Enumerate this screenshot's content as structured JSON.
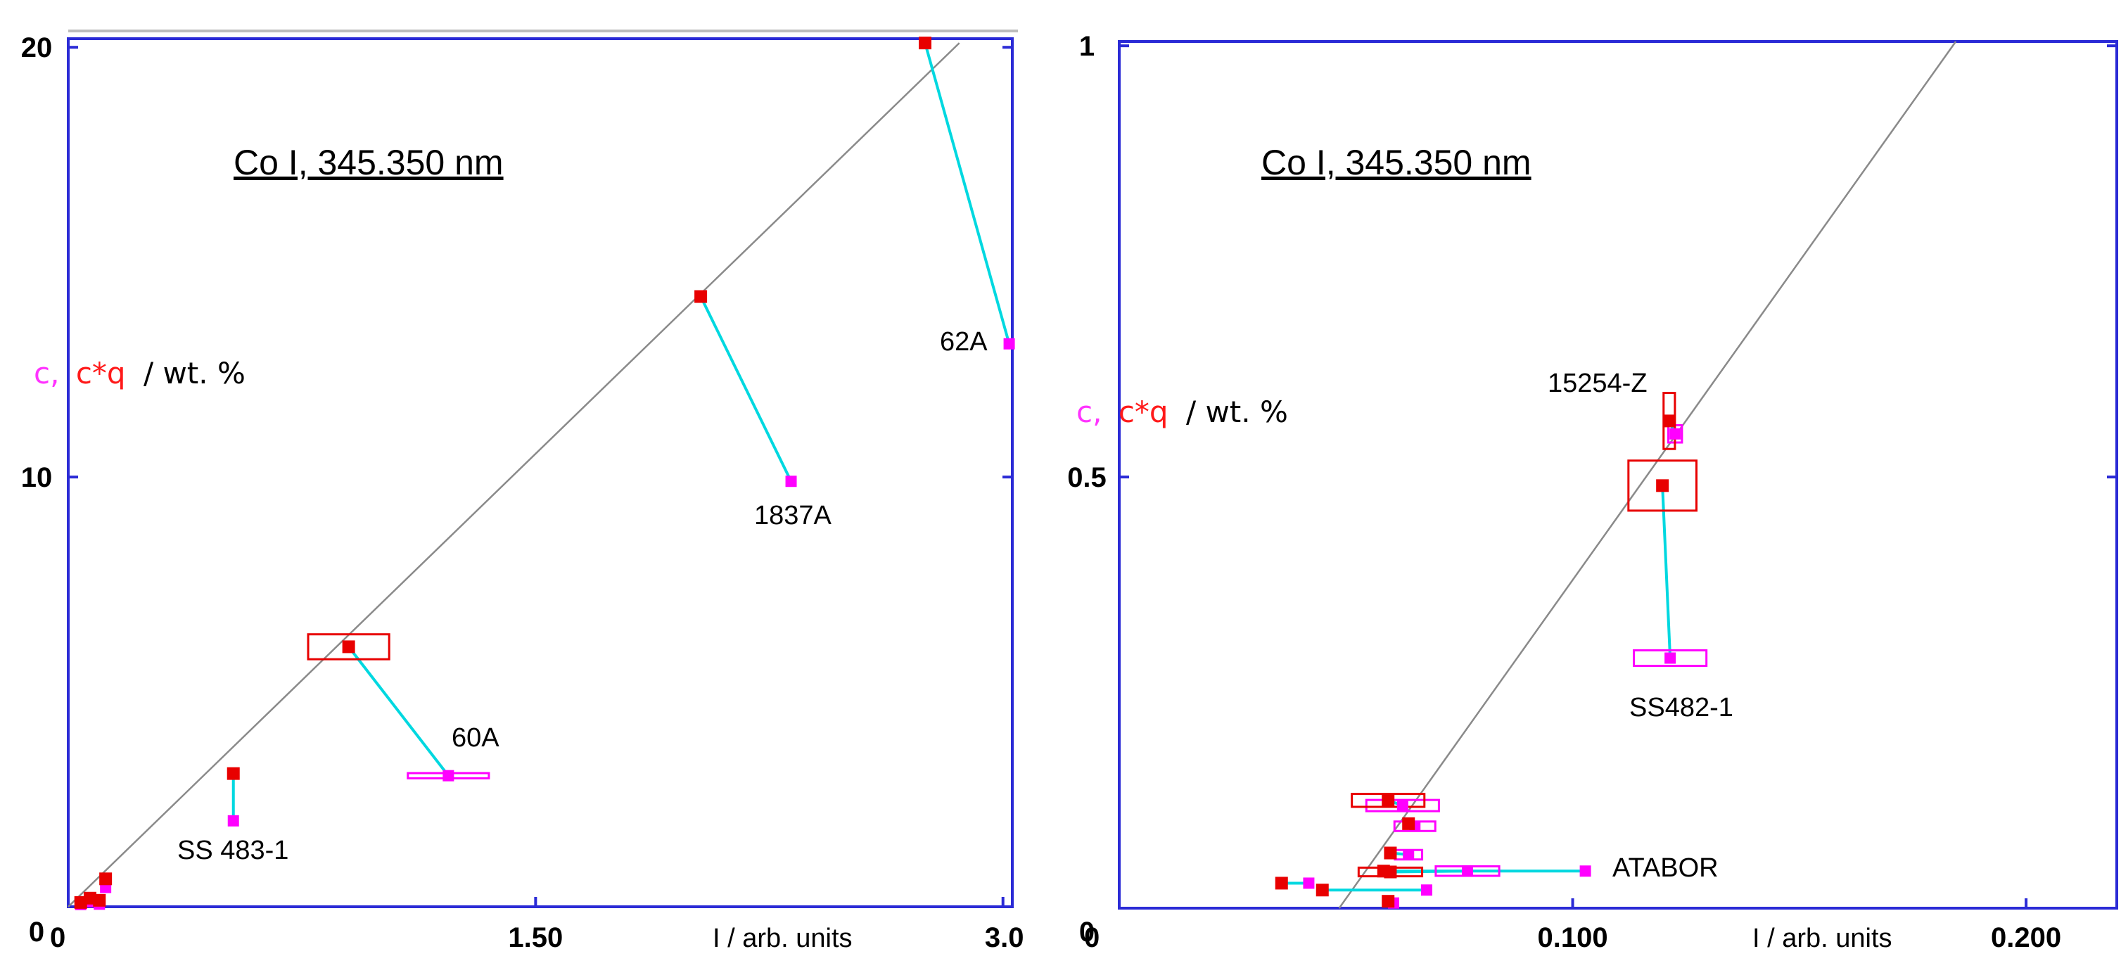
{
  "colors": {
    "frame": "#2b2bd6",
    "fit_line": "#8a8a8a",
    "connector": "#00d8e0",
    "measured": "#ff00ff",
    "corrected": "#e80000",
    "text": "#000000"
  },
  "chart_data": [
    {
      "type": "scatter",
      "title": "Co I, 345.350 nm",
      "xlabel": "I / arb. units",
      "ylabel_parts": [
        {
          "text": "c,",
          "color": "#ff33ff"
        },
        {
          "text": "c*q",
          "color": "#ff1a1a"
        },
        {
          "text": "/ wt. %",
          "color": "#000000"
        }
      ],
      "xlim": [
        0,
        3.03
      ],
      "ylim": [
        0,
        20.2
      ],
      "x_ticks": [
        0,
        1.5,
        3.0
      ],
      "x_tick_labels": [
        "0",
        "1.50",
        "3.0"
      ],
      "y_ticks": [
        0,
        10,
        20
      ],
      "y_tick_labels": [
        "0",
        "10",
        "20"
      ],
      "fit_line": {
        "x": [
          0.0,
          2.86
        ],
        "y": [
          0.0,
          20.1
        ]
      },
      "points": [
        {
          "label": "62A",
          "x_measured": 3.02,
          "c": 13.1,
          "x_corrected": 2.75,
          "cq": 20.1,
          "box_corrected": null,
          "box_measured": null
        },
        {
          "label": "1837A",
          "x_measured": 2.32,
          "c": 9.9,
          "x_corrected": 2.03,
          "cq": 14.2,
          "box_corrected": null,
          "box_measured": null
        },
        {
          "label": "60A",
          "x_measured": 1.22,
          "c": 3.05,
          "x_corrected": 0.9,
          "cq": 6.05,
          "box_corrected": [
            0.26,
            0.58
          ],
          "box_measured": [
            0.26,
            0.12
          ]
        },
        {
          "label": "SS 483-1",
          "x_measured": 0.53,
          "c": 2.0,
          "x_corrected": 0.53,
          "cq": 3.1,
          "box_corrected": null,
          "box_measured": null
        },
        {
          "label": "",
          "x_measured": 0.12,
          "c": 0.45,
          "x_corrected": 0.12,
          "cq": 0.65,
          "box_corrected": null,
          "box_measured": null
        },
        {
          "label": "",
          "x_measured": 0.07,
          "c": 0.12,
          "x_corrected": 0.07,
          "cq": 0.2,
          "box_corrected": null,
          "box_measured": null
        },
        {
          "label": "",
          "x_measured": 0.04,
          "c": 0.05,
          "x_corrected": 0.04,
          "cq": 0.1,
          "box_corrected": null,
          "box_measured": null
        },
        {
          "label": "",
          "x_measured": 0.1,
          "c": 0.06,
          "x_corrected": 0.1,
          "cq": 0.15,
          "box_corrected": null,
          "box_measured": null
        }
      ]
    },
    {
      "type": "scatter",
      "title": "Co I, 345.350 nm",
      "xlabel": "I / arb. units",
      "ylabel_parts": [
        {
          "text": "c,",
          "color": "#ff33ff"
        },
        {
          "text": "c*q",
          "color": "#ff1a1a"
        },
        {
          "text": "/ wt. %",
          "color": "#000000"
        }
      ],
      "xlim": [
        0,
        0.22
      ],
      "ylim": [
        0,
        1.005
      ],
      "x_ticks": [
        0,
        0.1,
        0.2
      ],
      "x_tick_labels": [
        "0",
        "0.100",
        "0.200"
      ],
      "y_ticks": [
        0,
        0.5,
        1.0
      ],
      "y_tick_labels": [
        "0",
        "0.5",
        "1"
      ],
      "fit_line": {
        "x": [
          0.0485,
          0.1845
        ],
        "y": [
          0.0,
          1.005
        ]
      },
      "points": [
        {
          "label": "15254-Z",
          "x_measured": 0.1226,
          "c": 0.55,
          "x_corrected": 0.1213,
          "cq": 0.565,
          "box_corrected": [
            0.0025,
            0.065
          ],
          "box_measured": [
            0.003,
            0.02
          ]
        },
        {
          "label": "SS482-1",
          "x_measured": 0.1215,
          "c": 0.29,
          "x_corrected": 0.1198,
          "cq": 0.49,
          "box_corrected": [
            0.015,
            0.058
          ],
          "box_measured": [
            0.016,
            0.018
          ]
        },
        {
          "label": "ATABOR",
          "x_measured": 0.1028,
          "c": 0.043,
          "x_corrected": 0.0583,
          "cq": 0.043,
          "box_corrected": null,
          "box_measured": null
        },
        {
          "label": "",
          "x_measured": 0.0625,
          "c": 0.119,
          "x_corrected": 0.0593,
          "cq": 0.125,
          "box_corrected": [
            0.016,
            0.015
          ],
          "box_measured": [
            0.016,
            0.013
          ]
        },
        {
          "label": "",
          "x_measured": 0.0652,
          "c": 0.095,
          "x_corrected": 0.0638,
          "cq": 0.098,
          "box_corrected": null,
          "box_measured": [
            0.009,
            0.011
          ]
        },
        {
          "label": "",
          "x_measured": 0.0638,
          "c": 0.062,
          "x_corrected": 0.0598,
          "cq": 0.064,
          "box_corrected": null,
          "box_measured": [
            0.006,
            0.011
          ]
        },
        {
          "label": "",
          "x_measured": 0.0768,
          "c": 0.043,
          "x_corrected": 0.0598,
          "cq": 0.042,
          "box_corrected": [
            0.014,
            0.01
          ],
          "box_measured": [
            0.014,
            0.011
          ]
        },
        {
          "label": "",
          "x_measured": 0.0418,
          "c": 0.029,
          "x_corrected": 0.0358,
          "cq": 0.029,
          "box_corrected": null,
          "box_measured": null
        },
        {
          "label": "",
          "x_measured": 0.0678,
          "c": 0.021,
          "x_corrected": 0.0448,
          "cq": 0.021,
          "box_corrected": null,
          "box_measured": null
        },
        {
          "label": "",
          "x_measured": 0.0605,
          "c": 0.006,
          "x_corrected": 0.0593,
          "cq": 0.008,
          "box_corrected": null,
          "box_measured": null
        }
      ]
    }
  ]
}
